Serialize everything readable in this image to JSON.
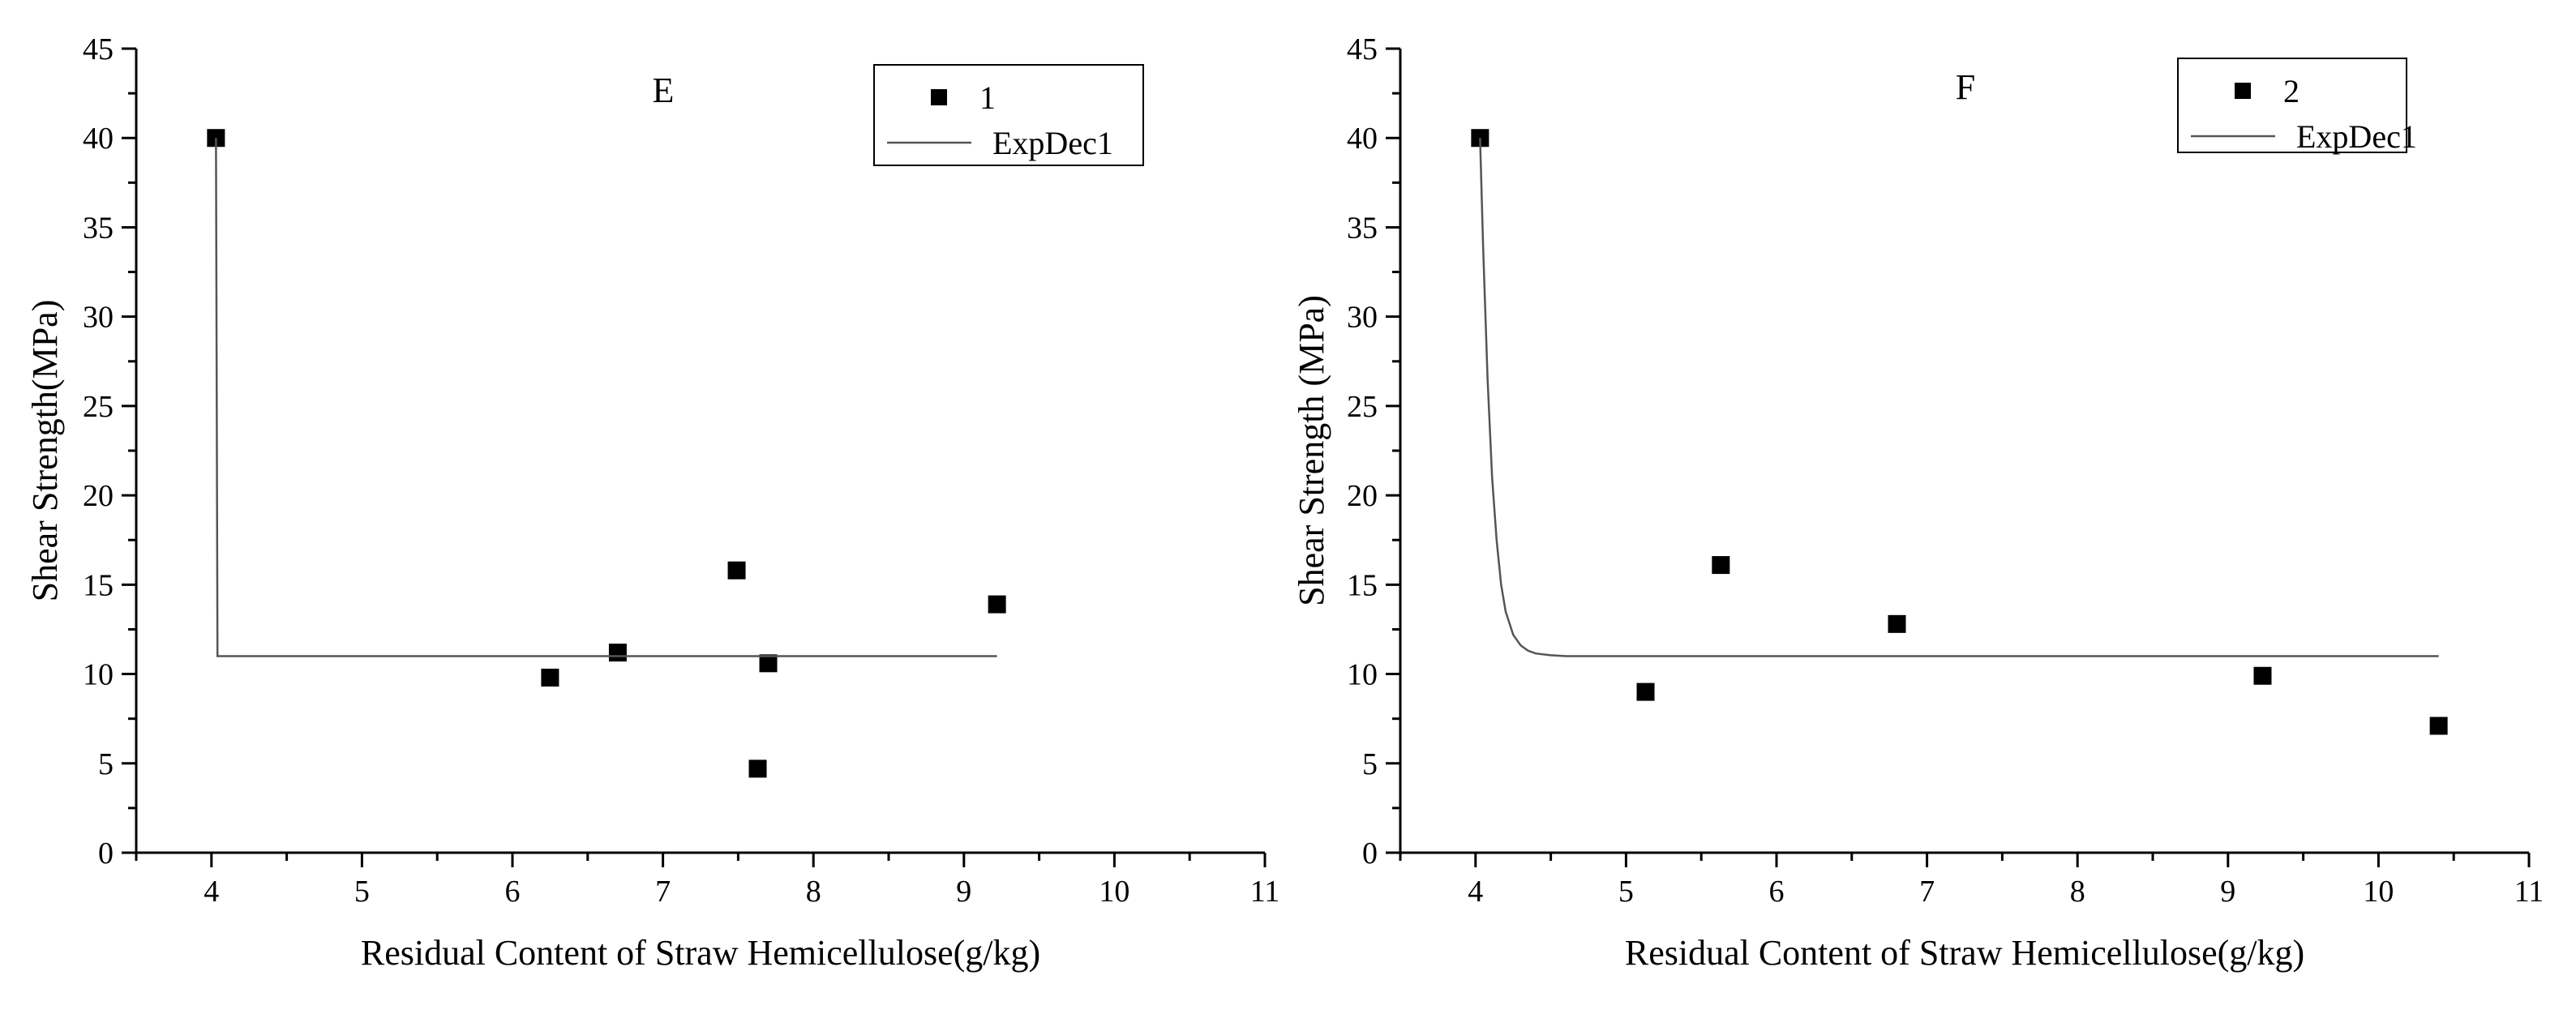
{
  "chart_data": [
    {
      "type": "scatter",
      "title": "E",
      "xlabel": "Residual Content of Straw Hemicellulose(g/kg)",
      "ylabel": "Shear Strength(MPa)",
      "xlim": [
        3.5,
        11
      ],
      "ylim": [
        0,
        45
      ],
      "xticks": [
        4,
        5,
        6,
        7,
        8,
        9,
        10,
        11
      ],
      "yticks": [
        0,
        5,
        10,
        15,
        20,
        25,
        30,
        35,
        40,
        45
      ],
      "grid": false,
      "legend_position": "top-right",
      "series": [
        {
          "name": "1",
          "kind": "scatter",
          "marker": "square",
          "color": "#000000",
          "x": [
            4.03,
            6.25,
            6.7,
            7.49,
            7.63,
            7.7,
            9.22
          ],
          "y": [
            40.0,
            9.8,
            11.2,
            15.8,
            4.7,
            10.6,
            13.9
          ]
        },
        {
          "name": "ExpDec1",
          "kind": "line",
          "color": "#555555",
          "x": [
            4.03,
            4.04,
            4.06,
            4.1,
            4.2,
            4.5,
            5.0,
            6.0,
            7.0,
            8.0,
            9.22
          ],
          "y": [
            40.0,
            11.0,
            11.0,
            11.0,
            11.0,
            11.0,
            11.0,
            11.0,
            11.0,
            11.0,
            11.0
          ]
        }
      ]
    },
    {
      "type": "scatter",
      "title": "F",
      "xlabel": "Residual Content of Straw Hemicellulose(g/kg)",
      "ylabel": "Shear Strength (MPa)",
      "xlim": [
        3.5,
        11
      ],
      "ylim": [
        0,
        45
      ],
      "xticks": [
        4,
        5,
        6,
        7,
        8,
        9,
        10,
        11
      ],
      "yticks": [
        0,
        5,
        10,
        15,
        20,
        25,
        30,
        35,
        40,
        45
      ],
      "grid": false,
      "legend_position": "top-right",
      "series": [
        {
          "name": "2",
          "kind": "scatter",
          "marker": "square",
          "color": "#000000",
          "x": [
            4.03,
            5.13,
            5.63,
            6.8,
            9.23,
            10.4
          ],
          "y": [
            40.0,
            9.0,
            16.1,
            12.8,
            9.9,
            7.1
          ]
        },
        {
          "name": "ExpDec1",
          "kind": "line",
          "color": "#555555",
          "x": [
            4.03,
            4.05,
            4.08,
            4.11,
            4.14,
            4.17,
            4.2,
            4.25,
            4.3,
            4.35,
            4.4,
            4.5,
            4.6,
            5.0,
            6.0,
            7.0,
            8.0,
            9.0,
            10.0,
            10.4
          ],
          "y": [
            40.0,
            34.0,
            26.5,
            21.0,
            17.5,
            15.0,
            13.5,
            12.2,
            11.6,
            11.3,
            11.15,
            11.05,
            11.0,
            11.0,
            11.0,
            11.0,
            11.0,
            11.0,
            11.0,
            11.0
          ]
        }
      ]
    }
  ]
}
